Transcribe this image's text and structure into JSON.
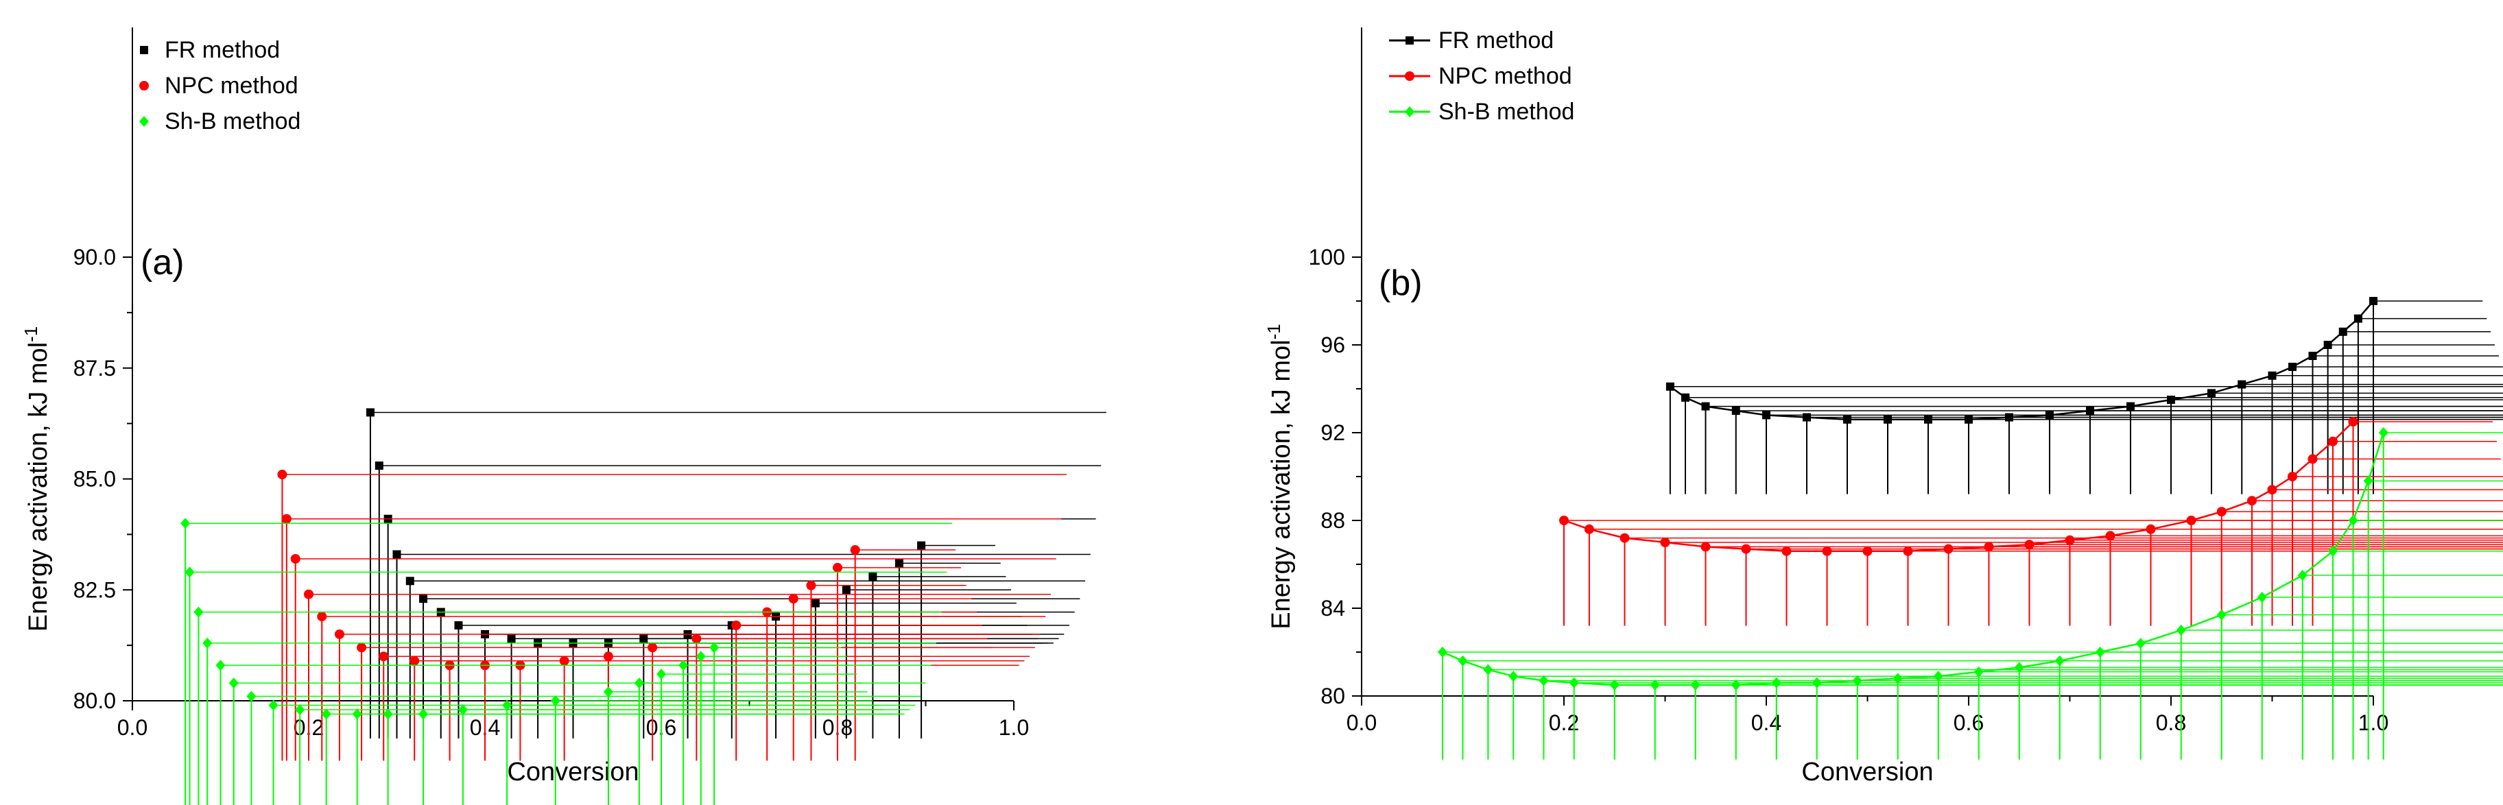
{
  "chart_data": [
    {
      "type": "scatter",
      "panel_label": "(a)",
      "xlabel": "Conversion",
      "ylabel": "Energy activation, kJ mol",
      "ylabel_sup": "-1",
      "xlim": [
        0.0,
        1.0
      ],
      "ylim": [
        80.0,
        90.0
      ],
      "xticks": [
        "0.0",
        "0.2",
        "0.4",
        "0.6",
        "0.8",
        "1.0"
      ],
      "yticks": [
        "80.0",
        "82.5",
        "85.0",
        "87.5",
        "90.0"
      ],
      "legend_position": "top-left",
      "series": [
        {
          "name": "FR method",
          "color": "#000000",
          "marker": "square",
          "connect": false,
          "x": [
            0.27,
            0.28,
            0.29,
            0.3,
            0.315,
            0.33,
            0.35,
            0.37,
            0.4,
            0.43,
            0.46,
            0.5,
            0.54,
            0.58,
            0.63,
            0.68,
            0.73,
            0.775,
            0.81,
            0.84,
            0.87,
            0.895
          ],
          "y": [
            86.5,
            85.3,
            84.1,
            83.3,
            82.7,
            82.3,
            82.0,
            81.7,
            81.5,
            81.4,
            81.3,
            81.3,
            81.3,
            81.4,
            81.5,
            81.7,
            81.9,
            82.2,
            82.5,
            82.8,
            83.1,
            83.5
          ]
        },
        {
          "name": "NPC method",
          "color": "#ff0000",
          "marker": "circle",
          "connect": false,
          "x": [
            0.17,
            0.175,
            0.185,
            0.2,
            0.215,
            0.235,
            0.26,
            0.285,
            0.32,
            0.36,
            0.4,
            0.44,
            0.49,
            0.54,
            0.59,
            0.64,
            0.685,
            0.72,
            0.75,
            0.77,
            0.8,
            0.82
          ],
          "y": [
            85.1,
            84.1,
            83.2,
            82.4,
            81.9,
            81.5,
            81.2,
            81.0,
            80.9,
            80.8,
            80.8,
            80.8,
            80.9,
            81.0,
            81.2,
            81.4,
            81.7,
            82.0,
            82.3,
            82.6,
            83.0,
            83.4
          ]
        },
        {
          "name": "Sh-B method",
          "color": "#00ff00",
          "marker": "diamond",
          "connect": false,
          "x": [
            0.06,
            0.065,
            0.075,
            0.085,
            0.1,
            0.115,
            0.135,
            0.16,
            0.19,
            0.22,
            0.255,
            0.29,
            0.33,
            0.375,
            0.425,
            0.48,
            0.54,
            0.575,
            0.6,
            0.625,
            0.645,
            0.66
          ],
          "y": [
            84.0,
            82.9,
            82.0,
            81.3,
            80.8,
            80.4,
            80.1,
            79.9,
            79.8,
            79.7,
            79.7,
            79.7,
            79.7,
            79.8,
            79.9,
            80.0,
            80.2,
            80.4,
            80.6,
            80.8,
            81.0,
            81.2
          ]
        }
      ]
    },
    {
      "type": "line",
      "panel_label": "(b)",
      "xlabel": "Conversion",
      "ylabel": "Energy activation, kJ mol",
      "ylabel_sup": "-1",
      "xlim": [
        0.0,
        1.0
      ],
      "ylim": [
        80,
        100
      ],
      "xticks": [
        "0.0",
        "0.2",
        "0.4",
        "0.6",
        "0.8",
        "1.0"
      ],
      "yticks": [
        "80",
        "84",
        "88",
        "92",
        "96",
        "100"
      ],
      "legend_position": "top-left",
      "series": [
        {
          "name": "FR method",
          "color": "#000000",
          "marker": "square",
          "connect": true,
          "x": [
            0.305,
            0.32,
            0.34,
            0.37,
            0.4,
            0.44,
            0.48,
            0.52,
            0.56,
            0.6,
            0.64,
            0.68,
            0.72,
            0.76,
            0.8,
            0.84,
            0.87,
            0.9,
            0.92,
            0.94,
            0.955,
            0.97,
            0.985,
            1.0
          ],
          "y": [
            94.1,
            93.6,
            93.2,
            93.0,
            92.8,
            92.7,
            92.6,
            92.6,
            92.6,
            92.6,
            92.7,
            92.8,
            93.0,
            93.2,
            93.5,
            93.8,
            94.2,
            94.6,
            95.0,
            95.5,
            96.0,
            96.6,
            97.2,
            98.0
          ]
        },
        {
          "name": "NPC method",
          "color": "#ff0000",
          "marker": "circle",
          "connect": true,
          "x": [
            0.2,
            0.225,
            0.26,
            0.3,
            0.34,
            0.38,
            0.42,
            0.46,
            0.5,
            0.54,
            0.58,
            0.62,
            0.66,
            0.7,
            0.74,
            0.78,
            0.82,
            0.85,
            0.88,
            0.9,
            0.92,
            0.94,
            0.96,
            0.98
          ],
          "y": [
            88.0,
            87.6,
            87.2,
            87.0,
            86.8,
            86.7,
            86.6,
            86.6,
            86.6,
            86.6,
            86.7,
            86.8,
            86.9,
            87.1,
            87.3,
            87.6,
            88.0,
            88.4,
            88.9,
            89.4,
            90.0,
            90.8,
            91.6,
            92.5
          ]
        },
        {
          "name": "Sh-B method",
          "color": "#00ff00",
          "marker": "diamond",
          "connect": true,
          "x": [
            0.08,
            0.1,
            0.125,
            0.15,
            0.18,
            0.21,
            0.25,
            0.29,
            0.33,
            0.37,
            0.41,
            0.45,
            0.49,
            0.53,
            0.57,
            0.61,
            0.65,
            0.69,
            0.73,
            0.77,
            0.81,
            0.85,
            0.89,
            0.93,
            0.96,
            0.98,
            0.995,
            1.01
          ],
          "y": [
            82.0,
            81.6,
            81.2,
            80.9,
            80.7,
            80.6,
            80.5,
            80.5,
            80.5,
            80.5,
            80.6,
            80.6,
            80.7,
            80.8,
            80.9,
            81.1,
            81.3,
            81.6,
            82.0,
            82.4,
            83.0,
            83.7,
            84.5,
            85.5,
            86.6,
            88.0,
            89.8,
            92.0
          ]
        }
      ]
    }
  ]
}
